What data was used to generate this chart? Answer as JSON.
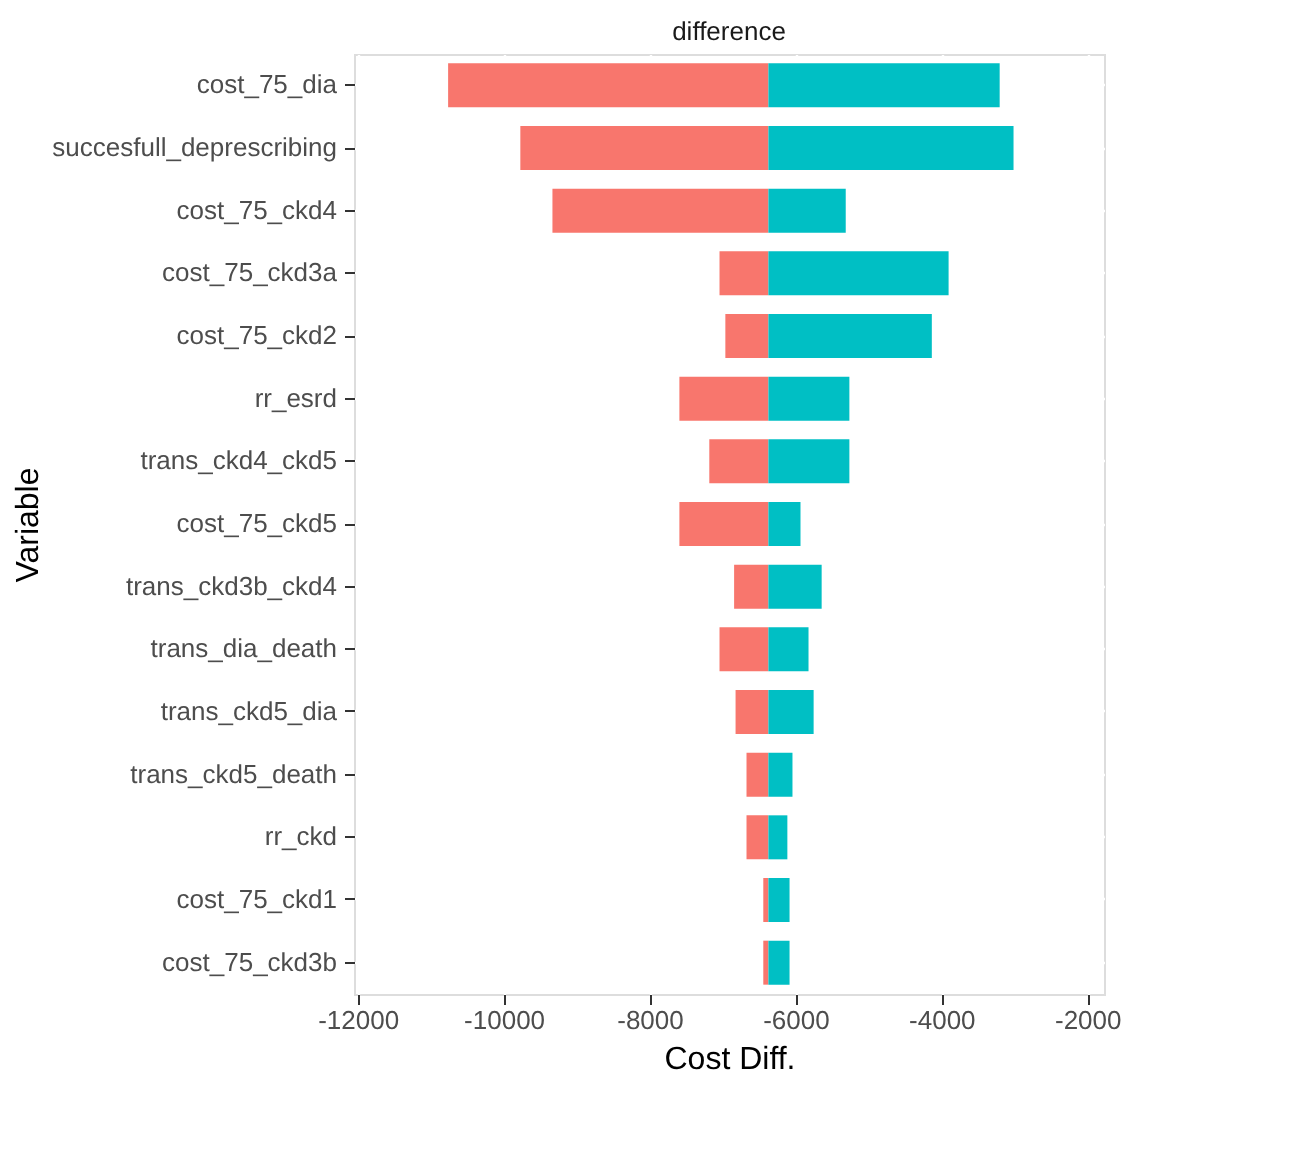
{
  "chart_data": {
    "type": "bar",
    "orientation": "horizontal",
    "title": "difference",
    "xlabel": "Cost Diff.",
    "ylabel": "Variable",
    "categories": [
      "cost_75_dia",
      "succesfull_deprescribing",
      "cost_75_ckd4",
      "cost_75_ckd3a",
      "cost_75_ckd2",
      "rr_esrd",
      "trans_ckd4_ckd5",
      "cost_75_ckd5",
      "trans_ckd3b_ckd4",
      "trans_dia_death",
      "trans_ckd5_dia",
      "trans_ckd5_death",
      "rr_ckd",
      "cost_75_ckd1",
      "cost_75_ckd3b"
    ],
    "series": [
      {
        "color": "#f8766d",
        "base": [
          -6370,
          -6370,
          -6370,
          -6370,
          -6370,
          -6370,
          -6370,
          -6370,
          -6370,
          -6370,
          -6370,
          -6370,
          -6370,
          -6370,
          -6370
        ],
        "values": [
          -4390,
          -3400,
          -2960,
          -670,
          -590,
          -1220,
          -810,
          -1220,
          -470,
          -670,
          -450,
          -300,
          -300,
          -70,
          -70
        ]
      },
      {
        "color": "#00bfc4",
        "base": [
          -6370,
          -6370,
          -6370,
          -6370,
          -6370,
          -6370,
          -6370,
          -6370,
          -6370,
          -6370,
          -6370,
          -6370,
          -6370,
          -6370,
          -6370
        ],
        "values": [
          3170,
          3360,
          1060,
          2470,
          2240,
          1110,
          1110,
          440,
          730,
          550,
          620,
          330,
          260,
          290,
          290
        ]
      }
    ],
    "xlim": [
      -12050,
      -1770
    ],
    "xticks": [
      -12000,
      -10000,
      -8000,
      -6000,
      -4000,
      -2000
    ],
    "grid": true,
    "legend": false
  }
}
